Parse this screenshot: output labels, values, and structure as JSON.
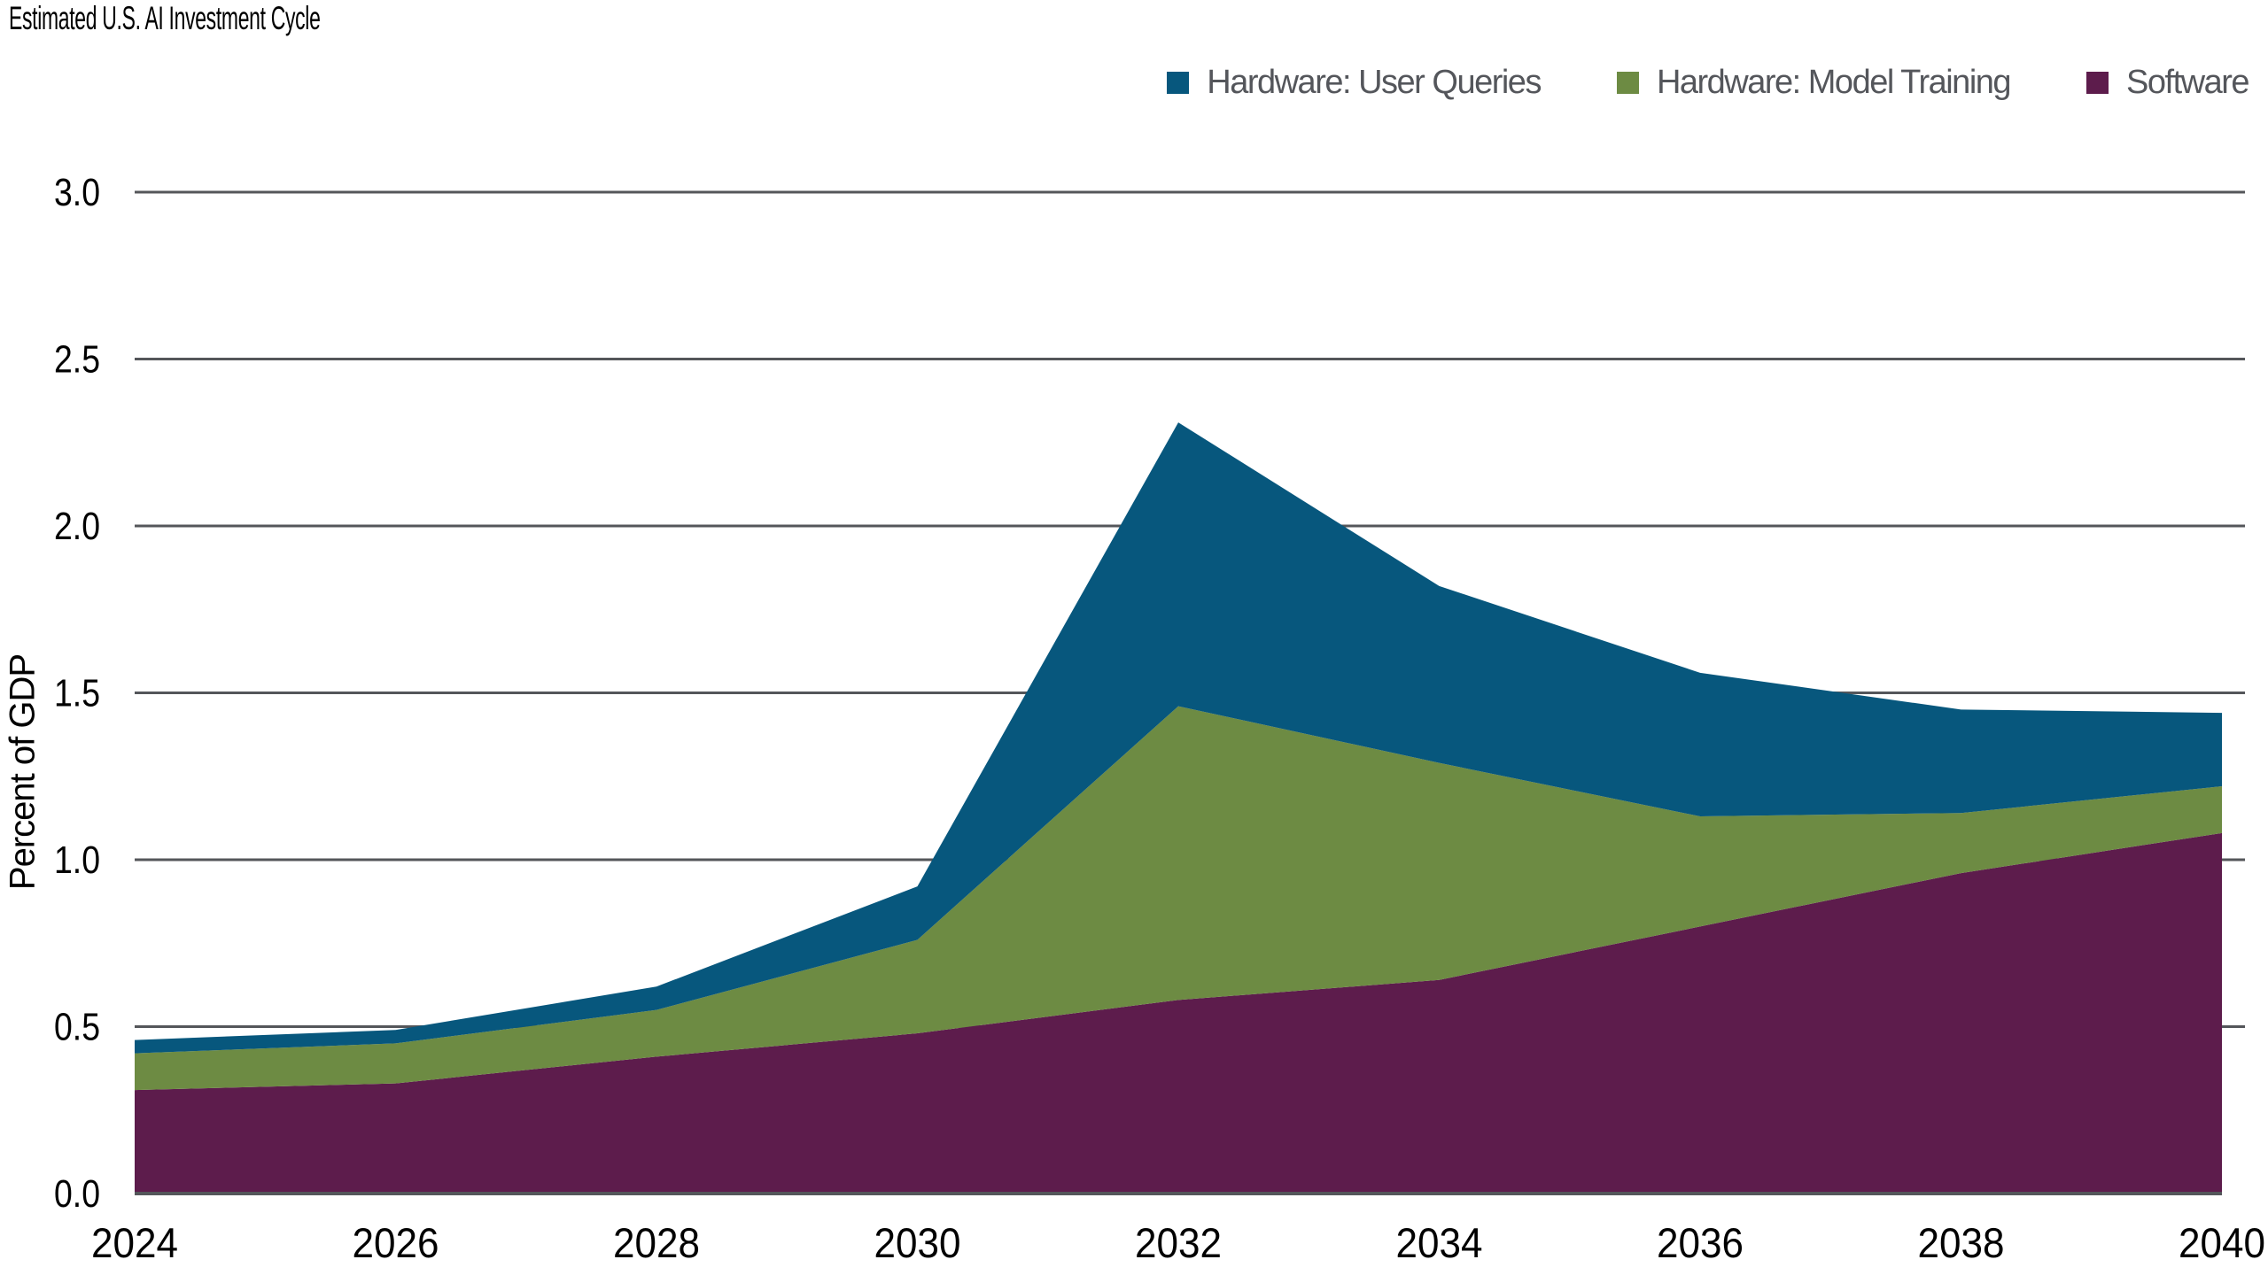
{
  "title": "Estimated U.S. AI Investment Cycle",
  "legend": [
    {
      "label": "Hardware: User Queries",
      "color": "#07577d"
    },
    {
      "label": "Hardware: Model Training",
      "color": "#6d8b43"
    },
    {
      "label": "Software",
      "color": "#5d1c4c"
    }
  ],
  "chart_data": {
    "type": "area",
    "stacked": true,
    "title": "Estimated U.S. AI Investment Cycle",
    "xlabel": "",
    "ylabel": "Percent of GDP",
    "x": [
      2024,
      2026,
      2028,
      2030,
      2032,
      2034,
      2036,
      2038,
      2040
    ],
    "series": [
      {
        "name": "Software",
        "color": "#5d1c4c",
        "values": [
          0.31,
          0.33,
          0.41,
          0.48,
          0.58,
          0.64,
          0.8,
          0.96,
          1.08
        ]
      },
      {
        "name": "Hardware: Model Training",
        "color": "#6d8b43",
        "values": [
          0.11,
          0.12,
          0.14,
          0.28,
          0.88,
          0.65,
          0.33,
          0.18,
          0.14
        ]
      },
      {
        "name": "Hardware: User Queries",
        "color": "#07577d",
        "values": [
          0.04,
          0.04,
          0.07,
          0.16,
          0.85,
          0.53,
          0.43,
          0.31,
          0.22
        ]
      }
    ],
    "stacked_totals": [
      0.46,
      0.49,
      0.62,
      0.92,
      2.31,
      1.82,
      1.56,
      1.45,
      1.44
    ],
    "ylim": [
      0,
      3.0
    ],
    "yticks": [
      "0.0",
      "0.5",
      "1.0",
      "1.5",
      "2.0",
      "2.5",
      "3.0"
    ],
    "xticks": [
      "2024",
      "2026",
      "2028",
      "2030",
      "2032",
      "2034",
      "2036",
      "2038",
      "2040"
    ],
    "grid": true,
    "gridline_color": "#54565a",
    "tick_label_color": "#000000",
    "legend_position": "top-right",
    "legend_text_color": "#54565b"
  }
}
